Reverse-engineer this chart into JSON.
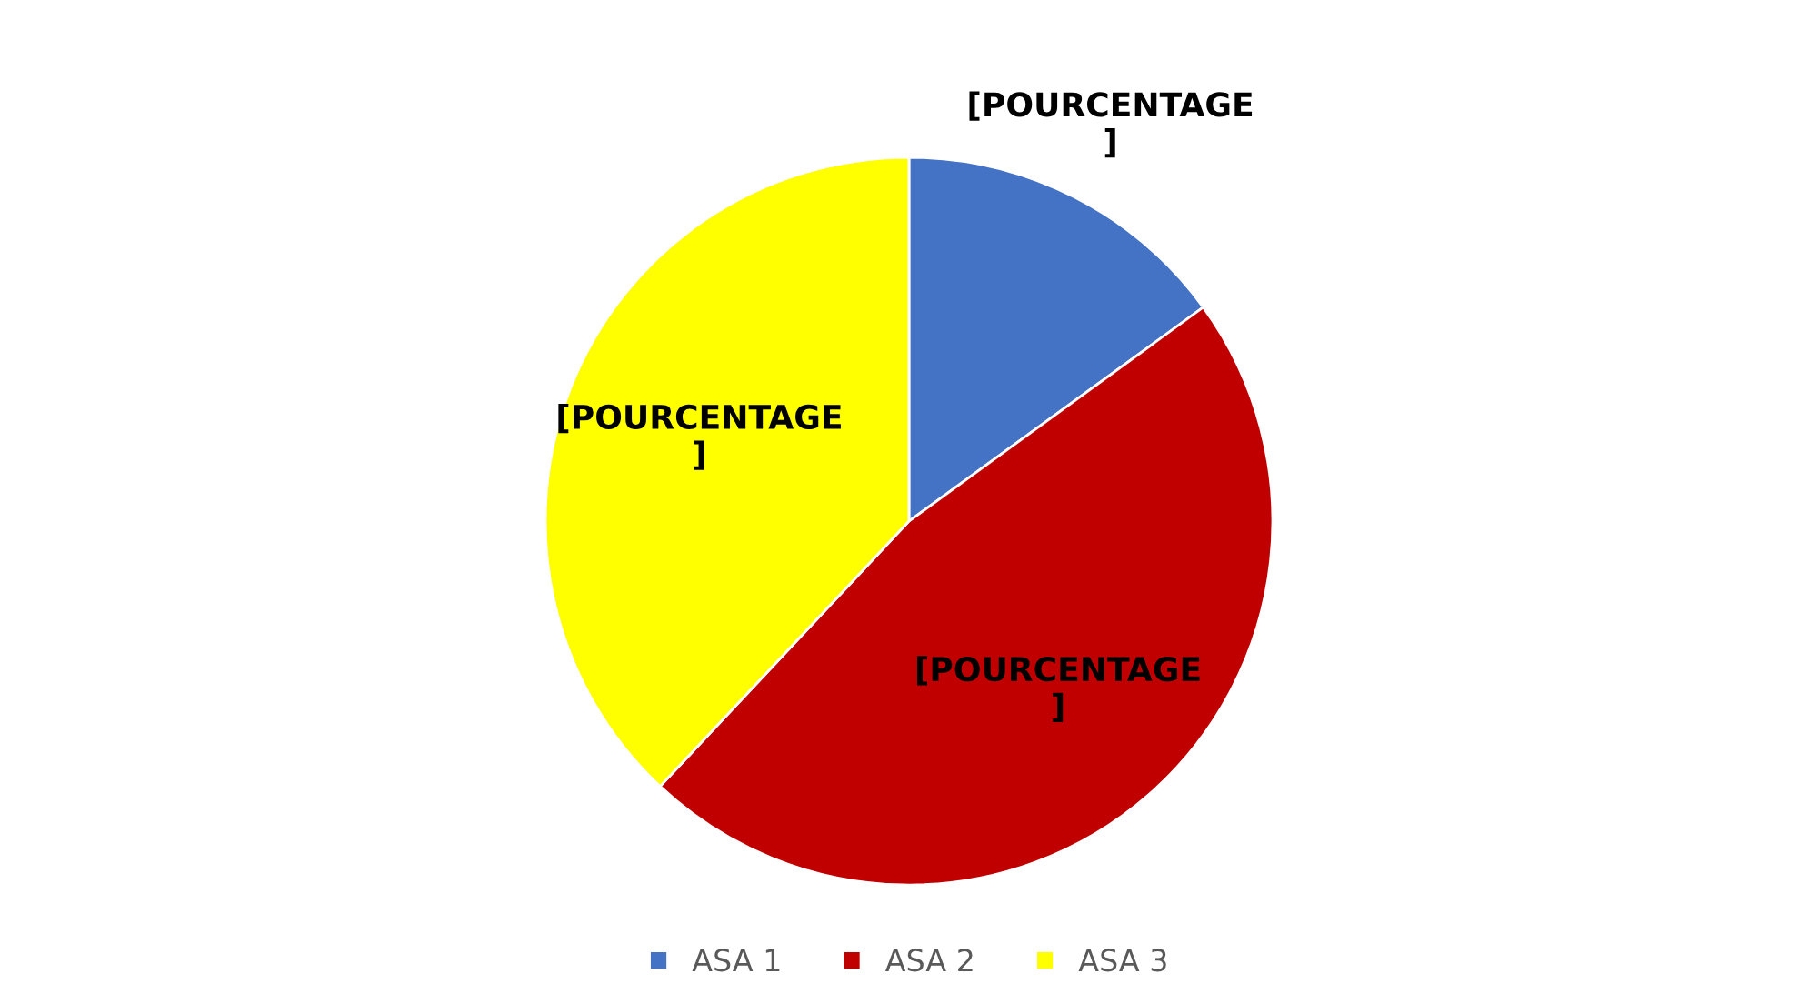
{
  "chart_data": {
    "type": "pie",
    "categories": [
      "ASA 1",
      "ASA 2",
      "ASA 3"
    ],
    "values": [
      15,
      47,
      38
    ],
    "colors": [
      "#4472c4",
      "#c00000",
      "#ffff00"
    ],
    "value_labels": [
      "[POURCENTAGE\n]",
      "[POURCENTAGE\n]",
      "[POURCENTAGE\n]"
    ],
    "legend": "bottom"
  }
}
